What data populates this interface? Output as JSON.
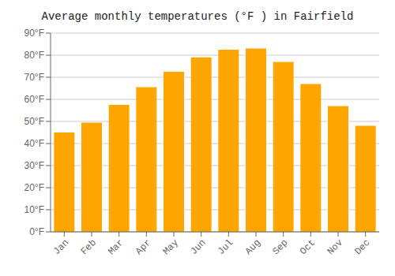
{
  "chart_data": {
    "type": "bar",
    "title": "Average monthly temperatures (°F ) in Fairfield",
    "categories": [
      "Jan",
      "Feb",
      "Mar",
      "Apr",
      "May",
      "Jun",
      "Jul",
      "Aug",
      "Sep",
      "Oct",
      "Nov",
      "Dec"
    ],
    "values": [
      45,
      49.5,
      57.5,
      65.5,
      72.5,
      79,
      82.5,
      83,
      77,
      67,
      57,
      48
    ],
    "color": "#FFA500",
    "ylim": [
      0,
      90
    ],
    "yticks": [
      {
        "value": 0,
        "label": "0°F"
      },
      {
        "value": 10,
        "label": "10°F"
      },
      {
        "value": 20,
        "label": "20°F"
      },
      {
        "value": 30,
        "label": "30°F"
      },
      {
        "value": 40,
        "label": "40°F"
      },
      {
        "value": 50,
        "label": "50°F"
      },
      {
        "value": 60,
        "label": "60°F"
      },
      {
        "value": 70,
        "label": "70°F"
      },
      {
        "value": 80,
        "label": "80°F"
      },
      {
        "value": 90,
        "label": "90°F"
      }
    ],
    "grid": true
  }
}
